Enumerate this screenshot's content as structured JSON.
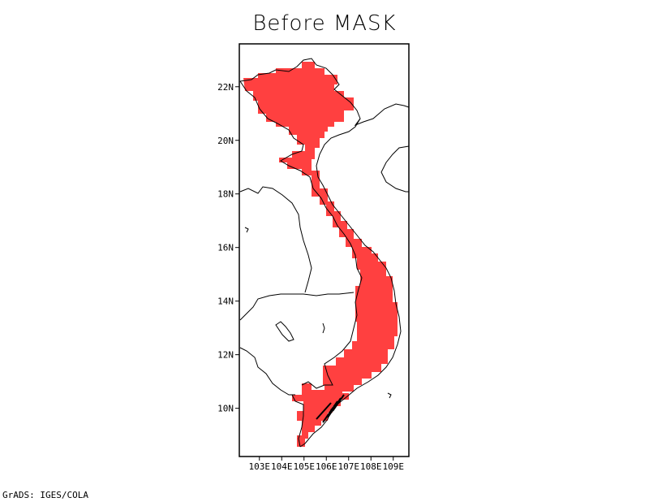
{
  "title": "Before MASK",
  "credit": "GrADS: IGES/COLA",
  "lat_ticks": [
    {
      "value": 22,
      "label": "22N"
    },
    {
      "value": 20,
      "label": "20N"
    },
    {
      "value": 18,
      "label": "18N"
    },
    {
      "value": 16,
      "label": "16N"
    },
    {
      "value": 14,
      "label": "14N"
    },
    {
      "value": 12,
      "label": "12N"
    },
    {
      "value": 10,
      "label": "10N"
    }
  ],
  "lon_ticks": [
    {
      "value": 103,
      "label": "103E"
    },
    {
      "value": 104,
      "label": "104E"
    },
    {
      "value": 105,
      "label": "105E"
    },
    {
      "value": 106,
      "label": "106E"
    },
    {
      "value": 107,
      "label": "107E"
    },
    {
      "value": 108,
      "label": "108E"
    },
    {
      "value": 109,
      "label": "109E"
    }
  ],
  "extent": {
    "lon": [
      102.1,
      109.7
    ],
    "lat": [
      8.2,
      23.6
    ]
  },
  "mask_color": "#ff4040"
}
